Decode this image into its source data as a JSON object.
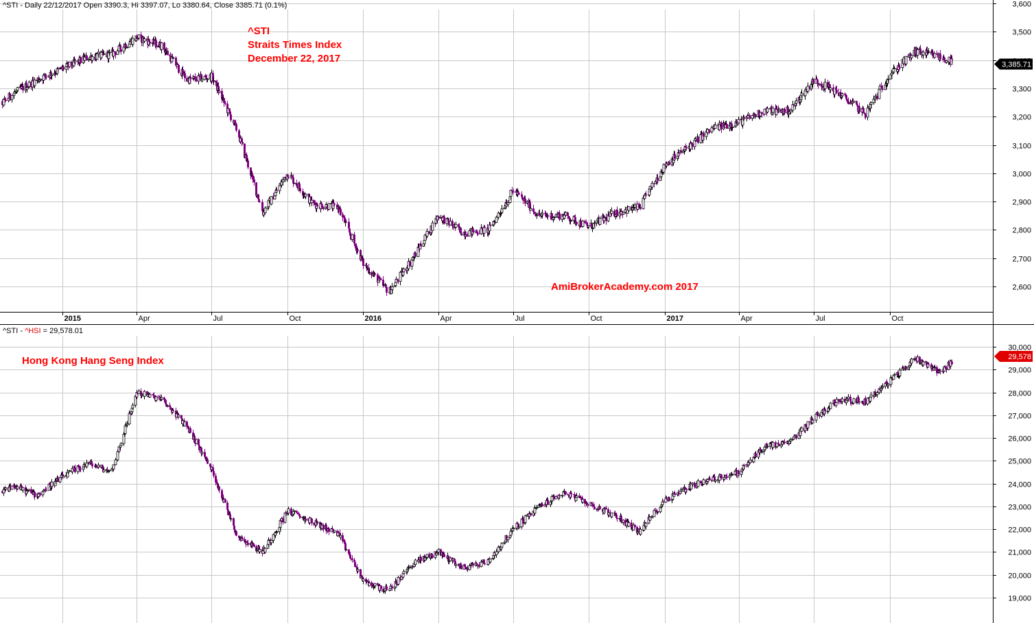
{
  "header": {
    "top_text": "^STI - Daily 22/12/2017 Open 3390.3, Hi 3397.07, Lo 3380.64, Close 3385.71 (0.1%)",
    "bottom_prefix": "^STI - ",
    "bottom_symbol": "^HSI",
    "bottom_value": " = 29,578.01"
  },
  "annotations": {
    "sti_symbol": "^STI",
    "sti_name": "Straits Times Index",
    "sti_date": "December 22, 2017",
    "watermark": "AmiBrokerAcademy.com 2017",
    "hsi_name": "Hong Kong Hang Seng Index"
  },
  "colors": {
    "down_candle": "#800080",
    "up_candle": "#000000",
    "grid": "#c8c8c8",
    "price_tag_sti": "#000000",
    "price_tag_hsi": "#e00000"
  },
  "chart_data": [
    {
      "type": "candlestick",
      "title": "^STI",
      "y_ticks": [
        2600,
        2700,
        2800,
        2900,
        3000,
        3100,
        3200,
        3300,
        3400,
        3500,
        3600
      ],
      "y_tick_labels": [
        "2,600",
        "2,700",
        "2,800",
        "2,900",
        "3,000",
        "3,100",
        "3,200",
        "3,300",
        "3,400",
        "3,500",
        "3,600"
      ],
      "last_close_label": "3,385.71",
      "last_close": 3385.71,
      "x_tick_labels": [
        "2015",
        "Apr",
        "Jul",
        "Oct",
        "2016",
        "Apr",
        "Jul",
        "Oct",
        "2017",
        "Apr",
        "Jul",
        "Oct"
      ],
      "x_tick_bold": [
        true,
        false,
        false,
        false,
        true,
        false,
        false,
        false,
        true,
        false,
        false,
        false
      ],
      "series": [
        {
          "date": [
            "2014-10-01",
            "2014-11-01",
            "2014-12-01",
            "2015-01-01",
            "2015-02-01",
            "2015-03-01",
            "2015-04-01",
            "2015-05-01",
            "2015-06-01",
            "2015-07-01",
            "2015-08-01",
            "2015-09-01",
            "2015-10-01",
            "2015-11-01",
            "2015-12-01",
            "2016-01-01",
            "2016-02-01",
            "2016-03-01",
            "2016-04-01",
            "2016-05-01",
            "2016-06-01",
            "2016-07-01",
            "2016-08-01",
            "2016-09-01",
            "2016-10-01",
            "2016-11-01",
            "2016-12-01",
            "2017-01-01",
            "2017-02-01",
            "2017-03-01",
            "2017-04-01",
            "2017-05-01",
            "2017-06-01",
            "2017-07-01",
            "2017-08-01",
            "2017-09-01",
            "2017-10-01",
            "2017-11-01",
            "2017-12-01",
            "2017-12-22"
          ],
          "close": [
            3200,
            3280,
            3330,
            3370,
            3410,
            3420,
            3480,
            3450,
            3330,
            3340,
            3150,
            2860,
            3000,
            2890,
            2880,
            2680,
            2580,
            2700,
            2850,
            2790,
            2800,
            2940,
            2850,
            2850,
            2810,
            2860,
            2880,
            3030,
            3100,
            3160,
            3180,
            3220,
            3220,
            3330,
            3280,
            3210,
            3350,
            3430,
            3410,
            3385.71
          ]
        }
      ]
    },
    {
      "type": "candlestick",
      "title": "^HSI",
      "y_ticks": [
        19000,
        20000,
        21000,
        22000,
        23000,
        24000,
        25000,
        26000,
        27000,
        28000,
        29000,
        30000
      ],
      "y_tick_labels": [
        "19,000",
        "20,000",
        "21,000",
        "22,000",
        "23,000",
        "24,000",
        "25,000",
        "26,000",
        "27,000",
        "28,000",
        "29,000",
        "30,000"
      ],
      "last_close_label": "29,578",
      "last_close": 29578.01,
      "series": [
        {
          "date": [
            "2014-10-01",
            "2014-11-01",
            "2014-12-01",
            "2015-01-01",
            "2015-02-01",
            "2015-03-01",
            "2015-04-01",
            "2015-05-01",
            "2015-06-01",
            "2015-07-01",
            "2015-08-01",
            "2015-09-01",
            "2015-10-01",
            "2015-11-01",
            "2015-12-01",
            "2016-01-01",
            "2016-02-01",
            "2016-03-01",
            "2016-04-01",
            "2016-05-01",
            "2016-06-01",
            "2016-07-01",
            "2016-08-01",
            "2016-09-01",
            "2016-10-01",
            "2016-11-01",
            "2016-12-01",
            "2017-01-01",
            "2017-02-01",
            "2017-03-01",
            "2017-04-01",
            "2017-05-01",
            "2017-06-01",
            "2017-07-01",
            "2017-08-01",
            "2017-09-01",
            "2017-10-01",
            "2017-11-01",
            "2017-12-01",
            "2017-12-22"
          ],
          "close": [
            23200,
            23900,
            23500,
            24300,
            24900,
            24500,
            28000,
            27700,
            26500,
            24600,
            21700,
            21000,
            22800,
            22300,
            21800,
            19700,
            19300,
            20500,
            21000,
            20300,
            20600,
            22000,
            23000,
            23600,
            23100,
            22600,
            21900,
            23300,
            23900,
            24200,
            24500,
            25600,
            25800,
            26900,
            27700,
            27600,
            28500,
            29500,
            28900,
            29578.01
          ]
        }
      ]
    }
  ]
}
